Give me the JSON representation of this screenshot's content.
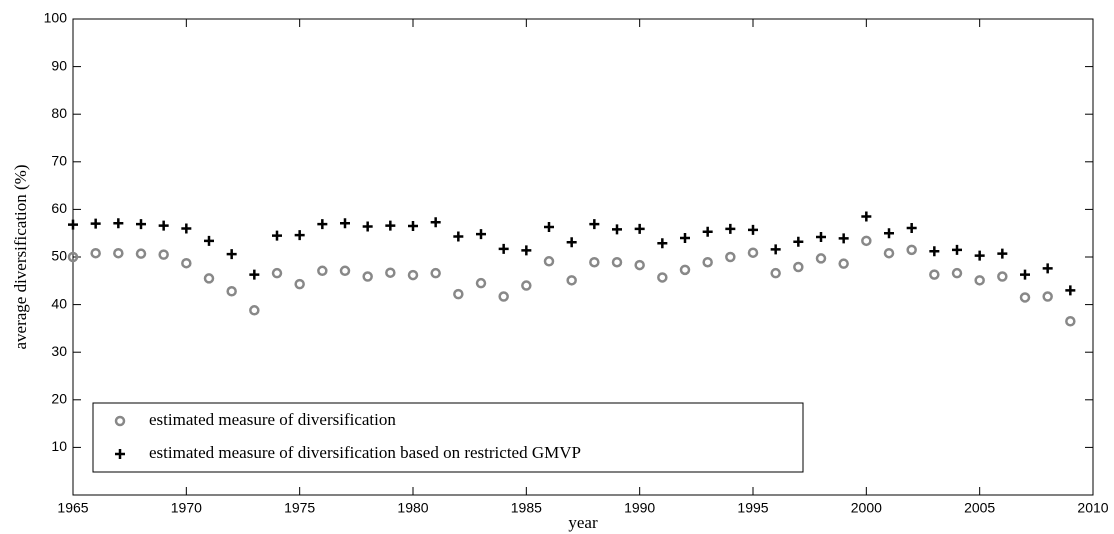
{
  "chart_data": {
    "type": "scatter",
    "x_label": "year",
    "y_label": "average diversification (%)",
    "x": [
      1965,
      1966,
      1967,
      1968,
      1969,
      1970,
      1971,
      1972,
      1973,
      1974,
      1975,
      1976,
      1977,
      1978,
      1979,
      1980,
      1981,
      1982,
      1983,
      1984,
      1985,
      1986,
      1987,
      1988,
      1989,
      1990,
      1991,
      1992,
      1993,
      1994,
      1995,
      1996,
      1997,
      1998,
      1999,
      2000,
      2001,
      2002,
      2003,
      2004,
      2005,
      2006,
      2007,
      2008,
      2009
    ],
    "series": [
      {
        "name": "estimated measure of diversification",
        "color": "#888888",
        "marker": "circle",
        "values": [
          50,
          50.8,
          50.8,
          50.7,
          50.5,
          48.7,
          45.5,
          42.8,
          38.8,
          46.6,
          44.3,
          47.1,
          47.1,
          45.9,
          46.7,
          46.2,
          46.6,
          42.2,
          44.5,
          41.7,
          44,
          49.1,
          45.1,
          48.9,
          48.9,
          48.3,
          45.7,
          47.3,
          48.9,
          50,
          50.9,
          46.6,
          47.9,
          49.7,
          48.6,
          53.4,
          50.8,
          51.5,
          46.3,
          46.6,
          45.1,
          45.9,
          41.5,
          41.7,
          36.5
        ]
      },
      {
        "name": "estimated measure of diversification based on restricted GMVP",
        "color": "#000000",
        "marker": "plus",
        "values": [
          56.8,
          57,
          57.1,
          56.9,
          56.6,
          56,
          53.4,
          50.6,
          46.3,
          54.5,
          54.6,
          56.9,
          57.1,
          56.4,
          56.6,
          56.5,
          57.3,
          54.3,
          54.8,
          51.7,
          51.4,
          56.3,
          53.1,
          56.9,
          55.8,
          55.9,
          52.9,
          54,
          55.3,
          55.9,
          55.7,
          51.6,
          53.2,
          54.2,
          53.9,
          58.5,
          55,
          56.1,
          51.2,
          51.5,
          50.3,
          50.7,
          46.3,
          47.6,
          43
        ]
      }
    ],
    "xlim": [
      1965,
      2010
    ],
    "xticks": [
      1965,
      1970,
      1975,
      1980,
      1985,
      1990,
      1995,
      2000,
      2005,
      2010
    ],
    "ylim": [
      0,
      100
    ],
    "yticks": [
      10,
      20,
      30,
      40,
      50,
      60,
      70,
      80,
      90,
      100
    ],
    "legend": "lower left"
  }
}
